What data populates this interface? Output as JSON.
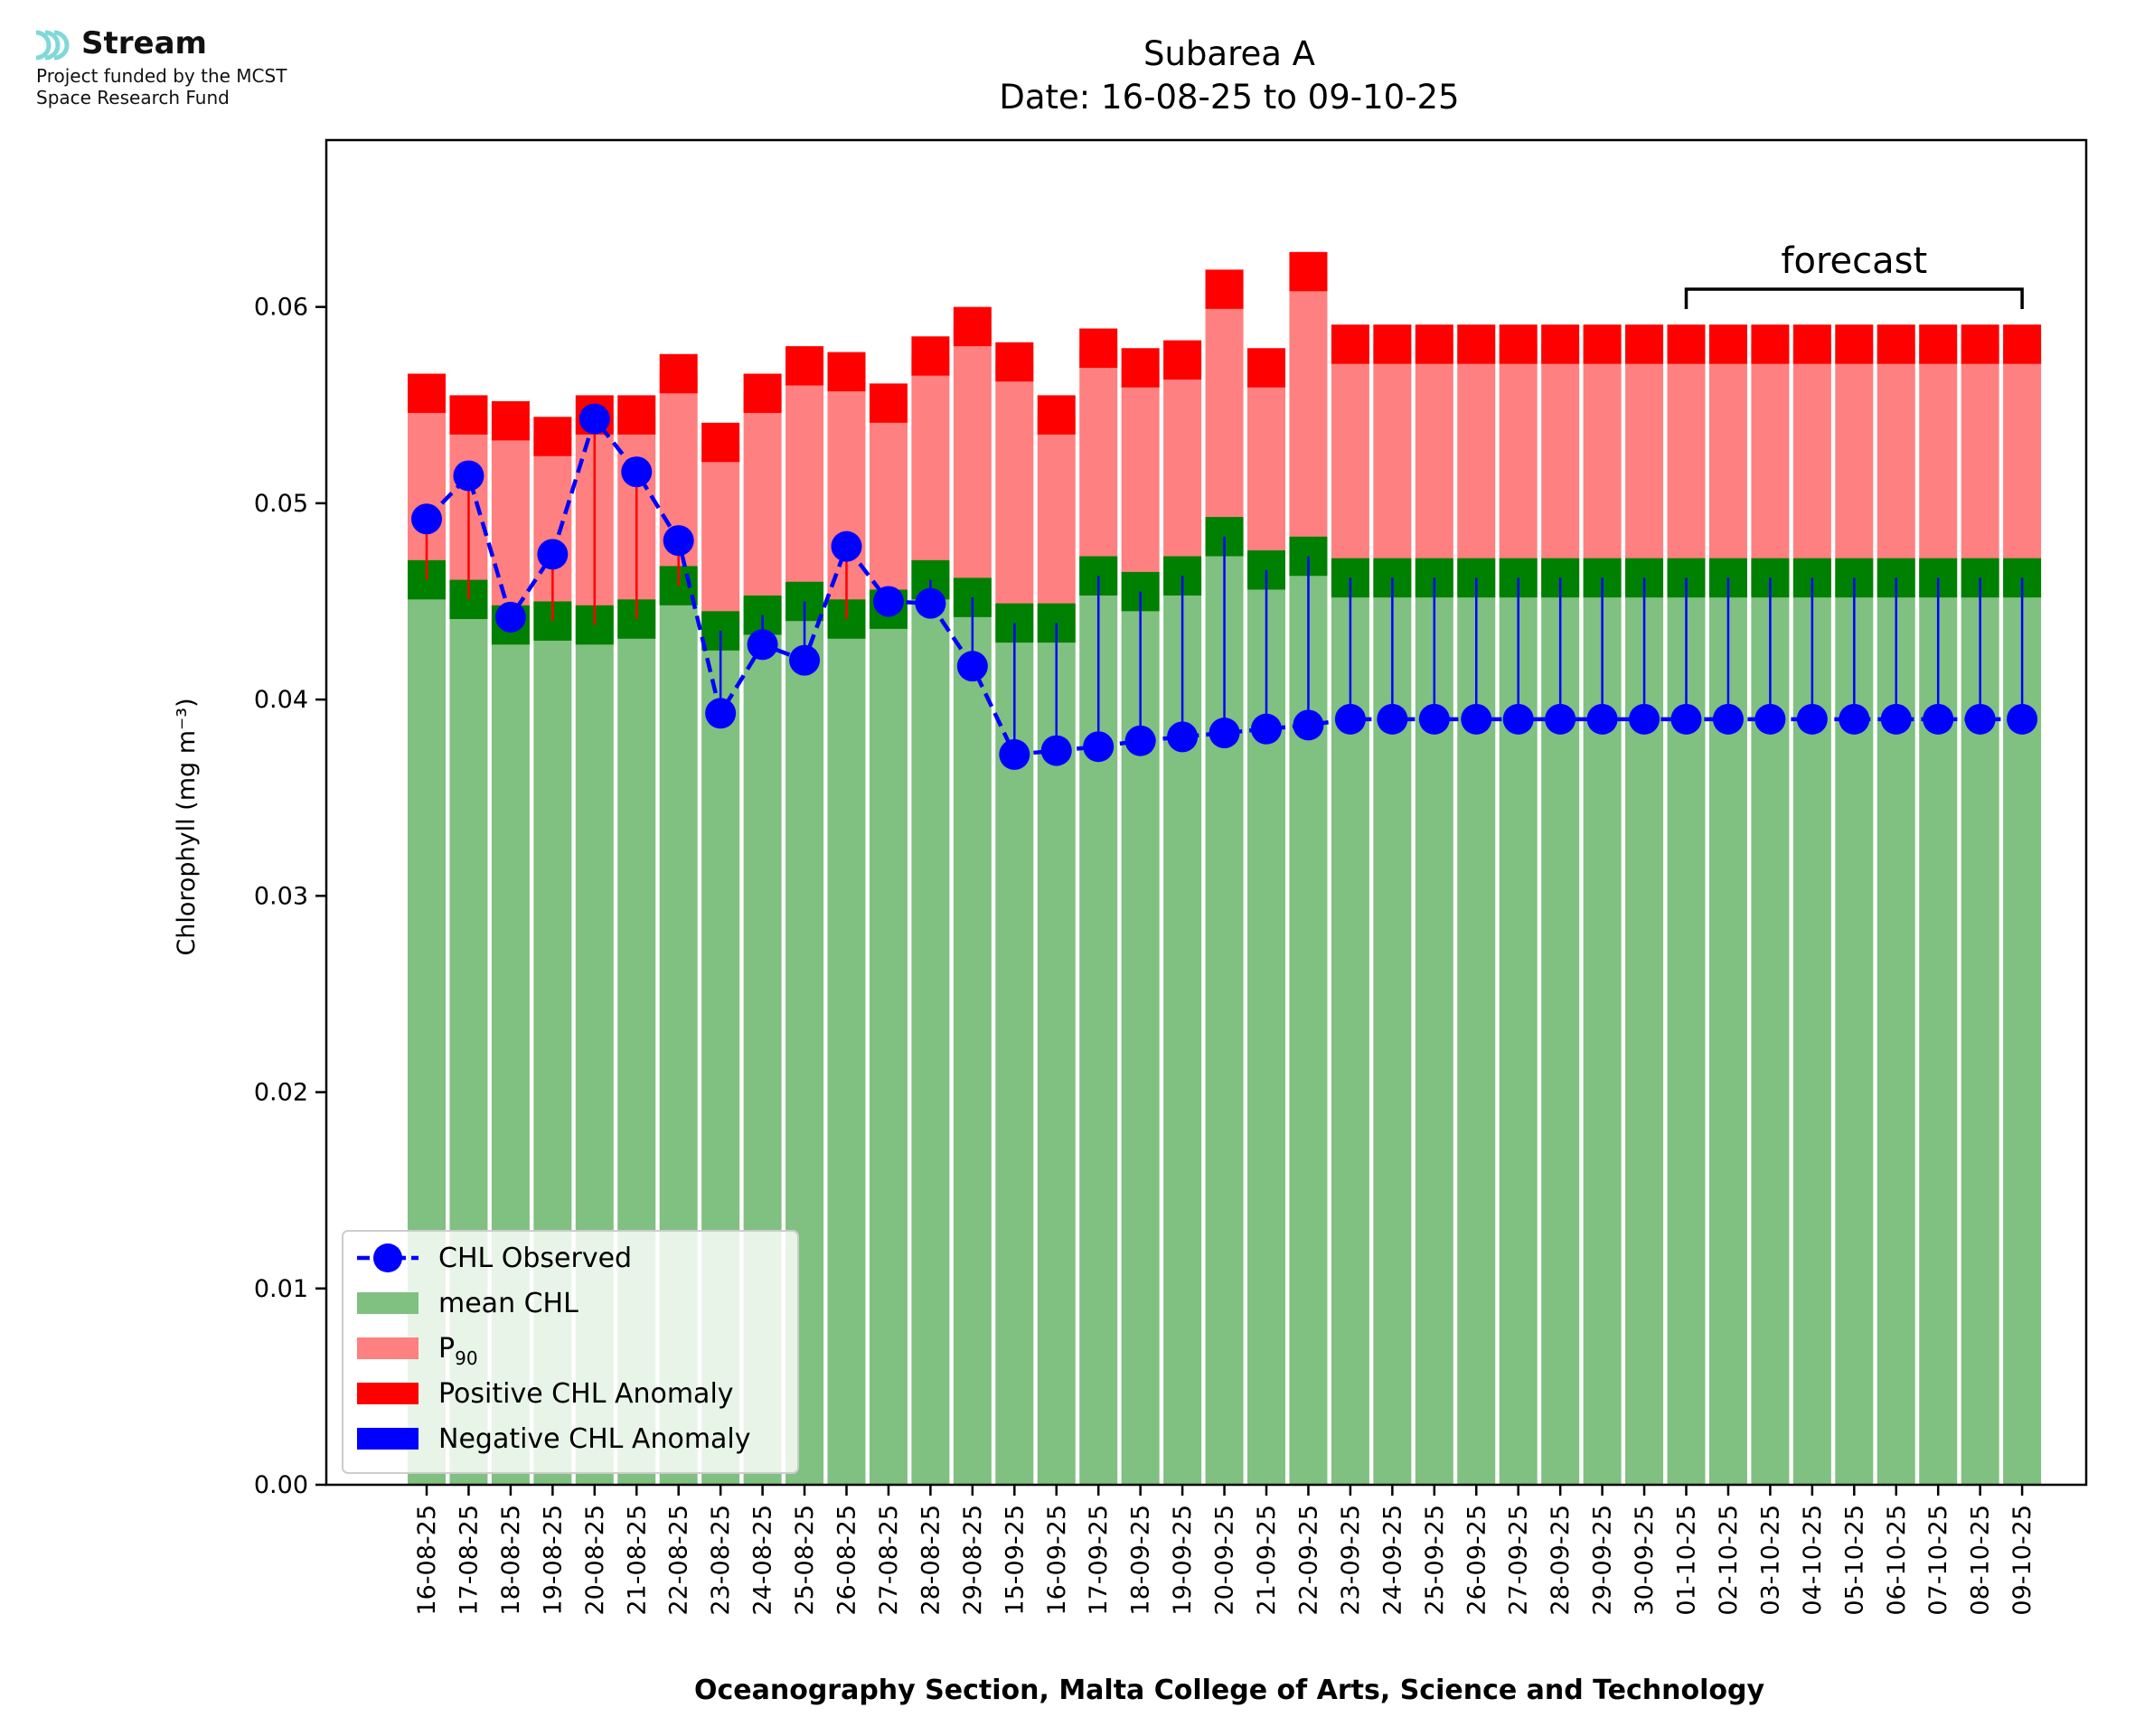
{
  "logo": {
    "name": "Stream",
    "tagline_line1": "Project funded by the MCST",
    "tagline_line2": "Space Research Fund",
    "icon": "stream-waves-icon",
    "color": "#7fd9d9"
  },
  "chart_data": {
    "type": "bar",
    "title": "Subarea A",
    "subtitle": "Date: 16-08-25 to 09-10-25",
    "xlabel": "Oceanography Section, Malta College of Arts, Science and Technology",
    "ylabel": "Chlorophyll (mg m⁻³)",
    "ylim": [
      0,
      0.0685
    ],
    "yticks": [
      "0.00",
      "0.01",
      "0.02",
      "0.03",
      "0.04",
      "0.05",
      "0.06"
    ],
    "grid": false,
    "legend_position": "lower-left",
    "annotation": {
      "text": "forecast",
      "from": "01-10-25",
      "to": "09-10-25"
    },
    "categories": [
      "16-08-25",
      "17-08-25",
      "18-08-25",
      "19-08-25",
      "20-08-25",
      "21-08-25",
      "22-08-25",
      "23-08-25",
      "24-08-25",
      "25-08-25",
      "26-08-25",
      "27-08-25",
      "28-08-25",
      "29-08-25",
      "15-09-25",
      "16-09-25",
      "17-09-25",
      "18-09-25",
      "19-09-25",
      "20-09-25",
      "21-09-25",
      "22-09-25",
      "23-09-25",
      "24-09-25",
      "25-09-25",
      "26-09-25",
      "27-09-25",
      "28-09-25",
      "29-09-25",
      "30-09-25",
      "01-10-25",
      "02-10-25",
      "03-10-25",
      "04-10-25",
      "05-10-25",
      "06-10-25",
      "07-10-25",
      "08-10-25",
      "09-10-25"
    ],
    "series": [
      {
        "name": "CHL Observed",
        "kind": "line",
        "color": "#0000ff",
        "values": [
          0.0492,
          0.0514,
          0.0442,
          0.0474,
          0.0543,
          0.0516,
          0.0481,
          0.0393,
          0.0428,
          0.042,
          0.0478,
          0.045,
          0.0449,
          0.0417,
          0.0372,
          0.0374,
          0.0376,
          0.0379,
          0.0381,
          0.0383,
          0.0385,
          0.0387,
          0.039,
          0.039,
          0.039,
          0.039,
          0.039,
          0.039,
          0.039,
          0.039,
          0.039,
          0.039,
          0.039,
          0.039,
          0.039,
          0.039,
          0.039,
          0.039,
          0.039
        ]
      },
      {
        "name": "mean CHL",
        "kind": "bar",
        "color": "#80c080",
        "edge_color": "#008000",
        "values": [
          0.0461,
          0.0451,
          0.0438,
          0.044,
          0.0438,
          0.0441,
          0.0458,
          0.0435,
          0.0443,
          0.045,
          0.0441,
          0.0446,
          0.0461,
          0.0452,
          0.0439,
          0.0439,
          0.0463,
          0.0455,
          0.0463,
          0.0483,
          0.0466,
          0.0473,
          0.0462,
          0.0462,
          0.0462,
          0.0462,
          0.0462,
          0.0462,
          0.0462,
          0.0462,
          0.0462,
          0.0462,
          0.0462,
          0.0462,
          0.0462,
          0.0462,
          0.0462,
          0.0462,
          0.0462
        ]
      },
      {
        "name": "P₉₀",
        "name_base": "P",
        "name_sub": "90",
        "kind": "bar",
        "color": "#ff8080",
        "edge_color": "#ff0000",
        "values": [
          0.0556,
          0.0545,
          0.0542,
          0.0534,
          0.0545,
          0.0545,
          0.0566,
          0.0531,
          0.0556,
          0.057,
          0.0567,
          0.0551,
          0.0575,
          0.059,
          0.0572,
          0.0545,
          0.0579,
          0.0569,
          0.0573,
          0.0609,
          0.0569,
          0.0618,
          0.0581,
          0.0581,
          0.0581,
          0.0581,
          0.0581,
          0.0581,
          0.0581,
          0.0581,
          0.0581,
          0.0581,
          0.0581,
          0.0581,
          0.0581,
          0.0581,
          0.0581,
          0.0581,
          0.0581
        ]
      },
      {
        "name": "Positive CHL Anomaly",
        "kind": "stem",
        "color": "#ff0000"
      },
      {
        "name": "Negative CHL Anomaly",
        "kind": "stem",
        "color": "#0000ff"
      }
    ]
  }
}
